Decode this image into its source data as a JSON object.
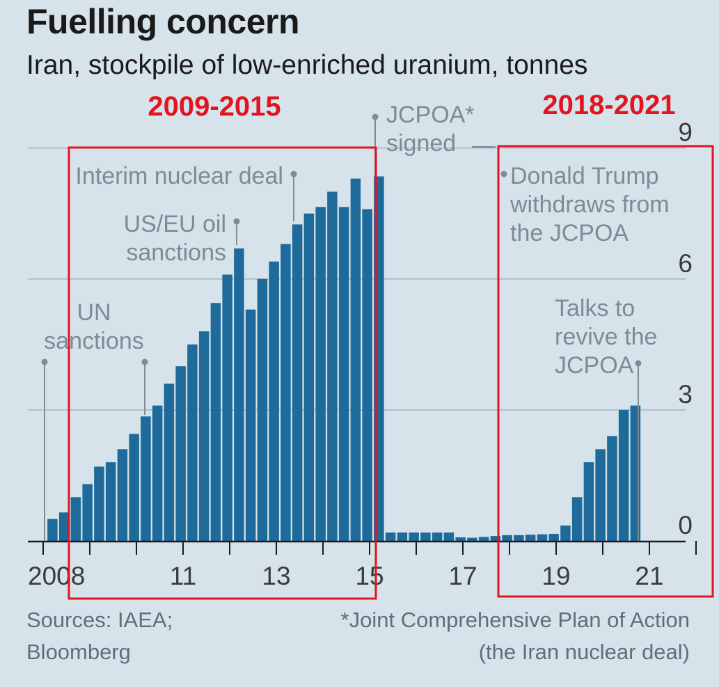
{
  "title": "Fuelling concern",
  "subtitle": "Iran, stockpile of low-enriched uranium, tonnes",
  "source_label": "Sources: IAEA;",
  "source_label_2": "Bloomberg",
  "footnote_line1": "*Joint Comprehensive Plan of Action",
  "footnote_line2": "(the Iran nuclear deal)",
  "colors": {
    "bar": "#1e6a9a",
    "grid": "#a8b8c2",
    "highlight": "#e3131f",
    "annotation": "#7d8b94"
  },
  "chart_data": {
    "type": "bar",
    "title": "Fuelling concern",
    "subtitle": "Iran, stockpile of low-enriched uranium, tonnes",
    "xlabel": "",
    "ylabel": "",
    "y_position": "right",
    "ylim": [
      0,
      9
    ],
    "xlim": [
      2008,
      2022.5
    ],
    "grid": true,
    "ytick_labels": [
      "0",
      "3",
      "6",
      "9"
    ],
    "ytick_values": [
      0,
      3,
      6,
      9
    ],
    "xtick_labels": [
      "2008",
      "11",
      "13",
      "15",
      "17",
      "19",
      "21"
    ],
    "xtick_values": [
      2008,
      2011,
      2013,
      2015,
      2017,
      2019,
      2021
    ],
    "minor_xticks": [
      2009,
      2010,
      2012,
      2014,
      2016,
      2018,
      2020,
      2022
    ],
    "series": [
      {
        "name": "Low-enriched uranium stockpile (tonnes)",
        "x": [
          2008.2,
          2008.45,
          2008.7,
          2008.95,
          2009.2,
          2009.45,
          2009.7,
          2009.95,
          2010.2,
          2010.45,
          2010.7,
          2010.95,
          2011.2,
          2011.45,
          2011.7,
          2011.95,
          2012.2,
          2012.45,
          2012.7,
          2012.95,
          2013.2,
          2013.45,
          2013.7,
          2013.95,
          2014.2,
          2014.45,
          2014.7,
          2014.95,
          2015.2,
          2015.45,
          2015.7,
          2015.95,
          2016.2,
          2016.45,
          2016.7,
          2016.95,
          2017.2,
          2017.45,
          2017.7,
          2017.95,
          2018.2,
          2018.45,
          2018.7,
          2018.95,
          2019.2,
          2019.45,
          2019.7,
          2019.95,
          2020.2,
          2020.45,
          2020.7,
          2020.95
        ],
        "values": [
          0.5,
          0.65,
          1.0,
          1.3,
          1.7,
          1.8,
          2.1,
          2.45,
          2.85,
          3.1,
          3.6,
          4.0,
          4.5,
          4.8,
          5.45,
          6.1,
          6.7,
          5.3,
          6.0,
          6.4,
          6.8,
          7.25,
          7.5,
          7.65,
          8.0,
          7.65,
          8.3,
          7.6,
          8.35,
          0.19,
          0.19,
          0.19,
          0.19,
          0.19,
          0.19,
          0.08,
          0.07,
          0.09,
          0.11,
          0.13,
          0.13,
          0.14,
          0.15,
          0.16,
          0.35,
          1.0,
          1.8,
          2.1,
          2.4,
          3.0,
          3.1,
          0.0
        ]
      }
    ],
    "annotations": [
      {
        "lines": [
          "UN",
          "sanctions"
        ],
        "x": 2008.0
      },
      {
        "lines": [
          "UN",
          "sanctions"
        ],
        "x": 2010.25
      },
      {
        "lines": [
          "US/EU oil",
          "sanctions"
        ],
        "x": 2012.0
      },
      {
        "lines": [
          "Interim nuclear deal"
        ],
        "x": 2013.9
      },
      {
        "lines": [
          "JCPOA*",
          "signed"
        ],
        "x": 2015.5
      },
      {
        "lines": [
          "Donald Trump",
          "withdraws from",
          "the JCPOA"
        ],
        "x": 2018.3
      },
      {
        "lines": [
          "Talks to",
          "revive the",
          "JCPOA"
        ],
        "x": 2021.0
      }
    ],
    "highlight_boxes": [
      {
        "label": "2009-2015",
        "x_start": 2009.0,
        "x_end": 2015.95
      },
      {
        "label": "2018-2021",
        "x_start": 2018.25,
        "x_end": 2022.4
      }
    ]
  }
}
